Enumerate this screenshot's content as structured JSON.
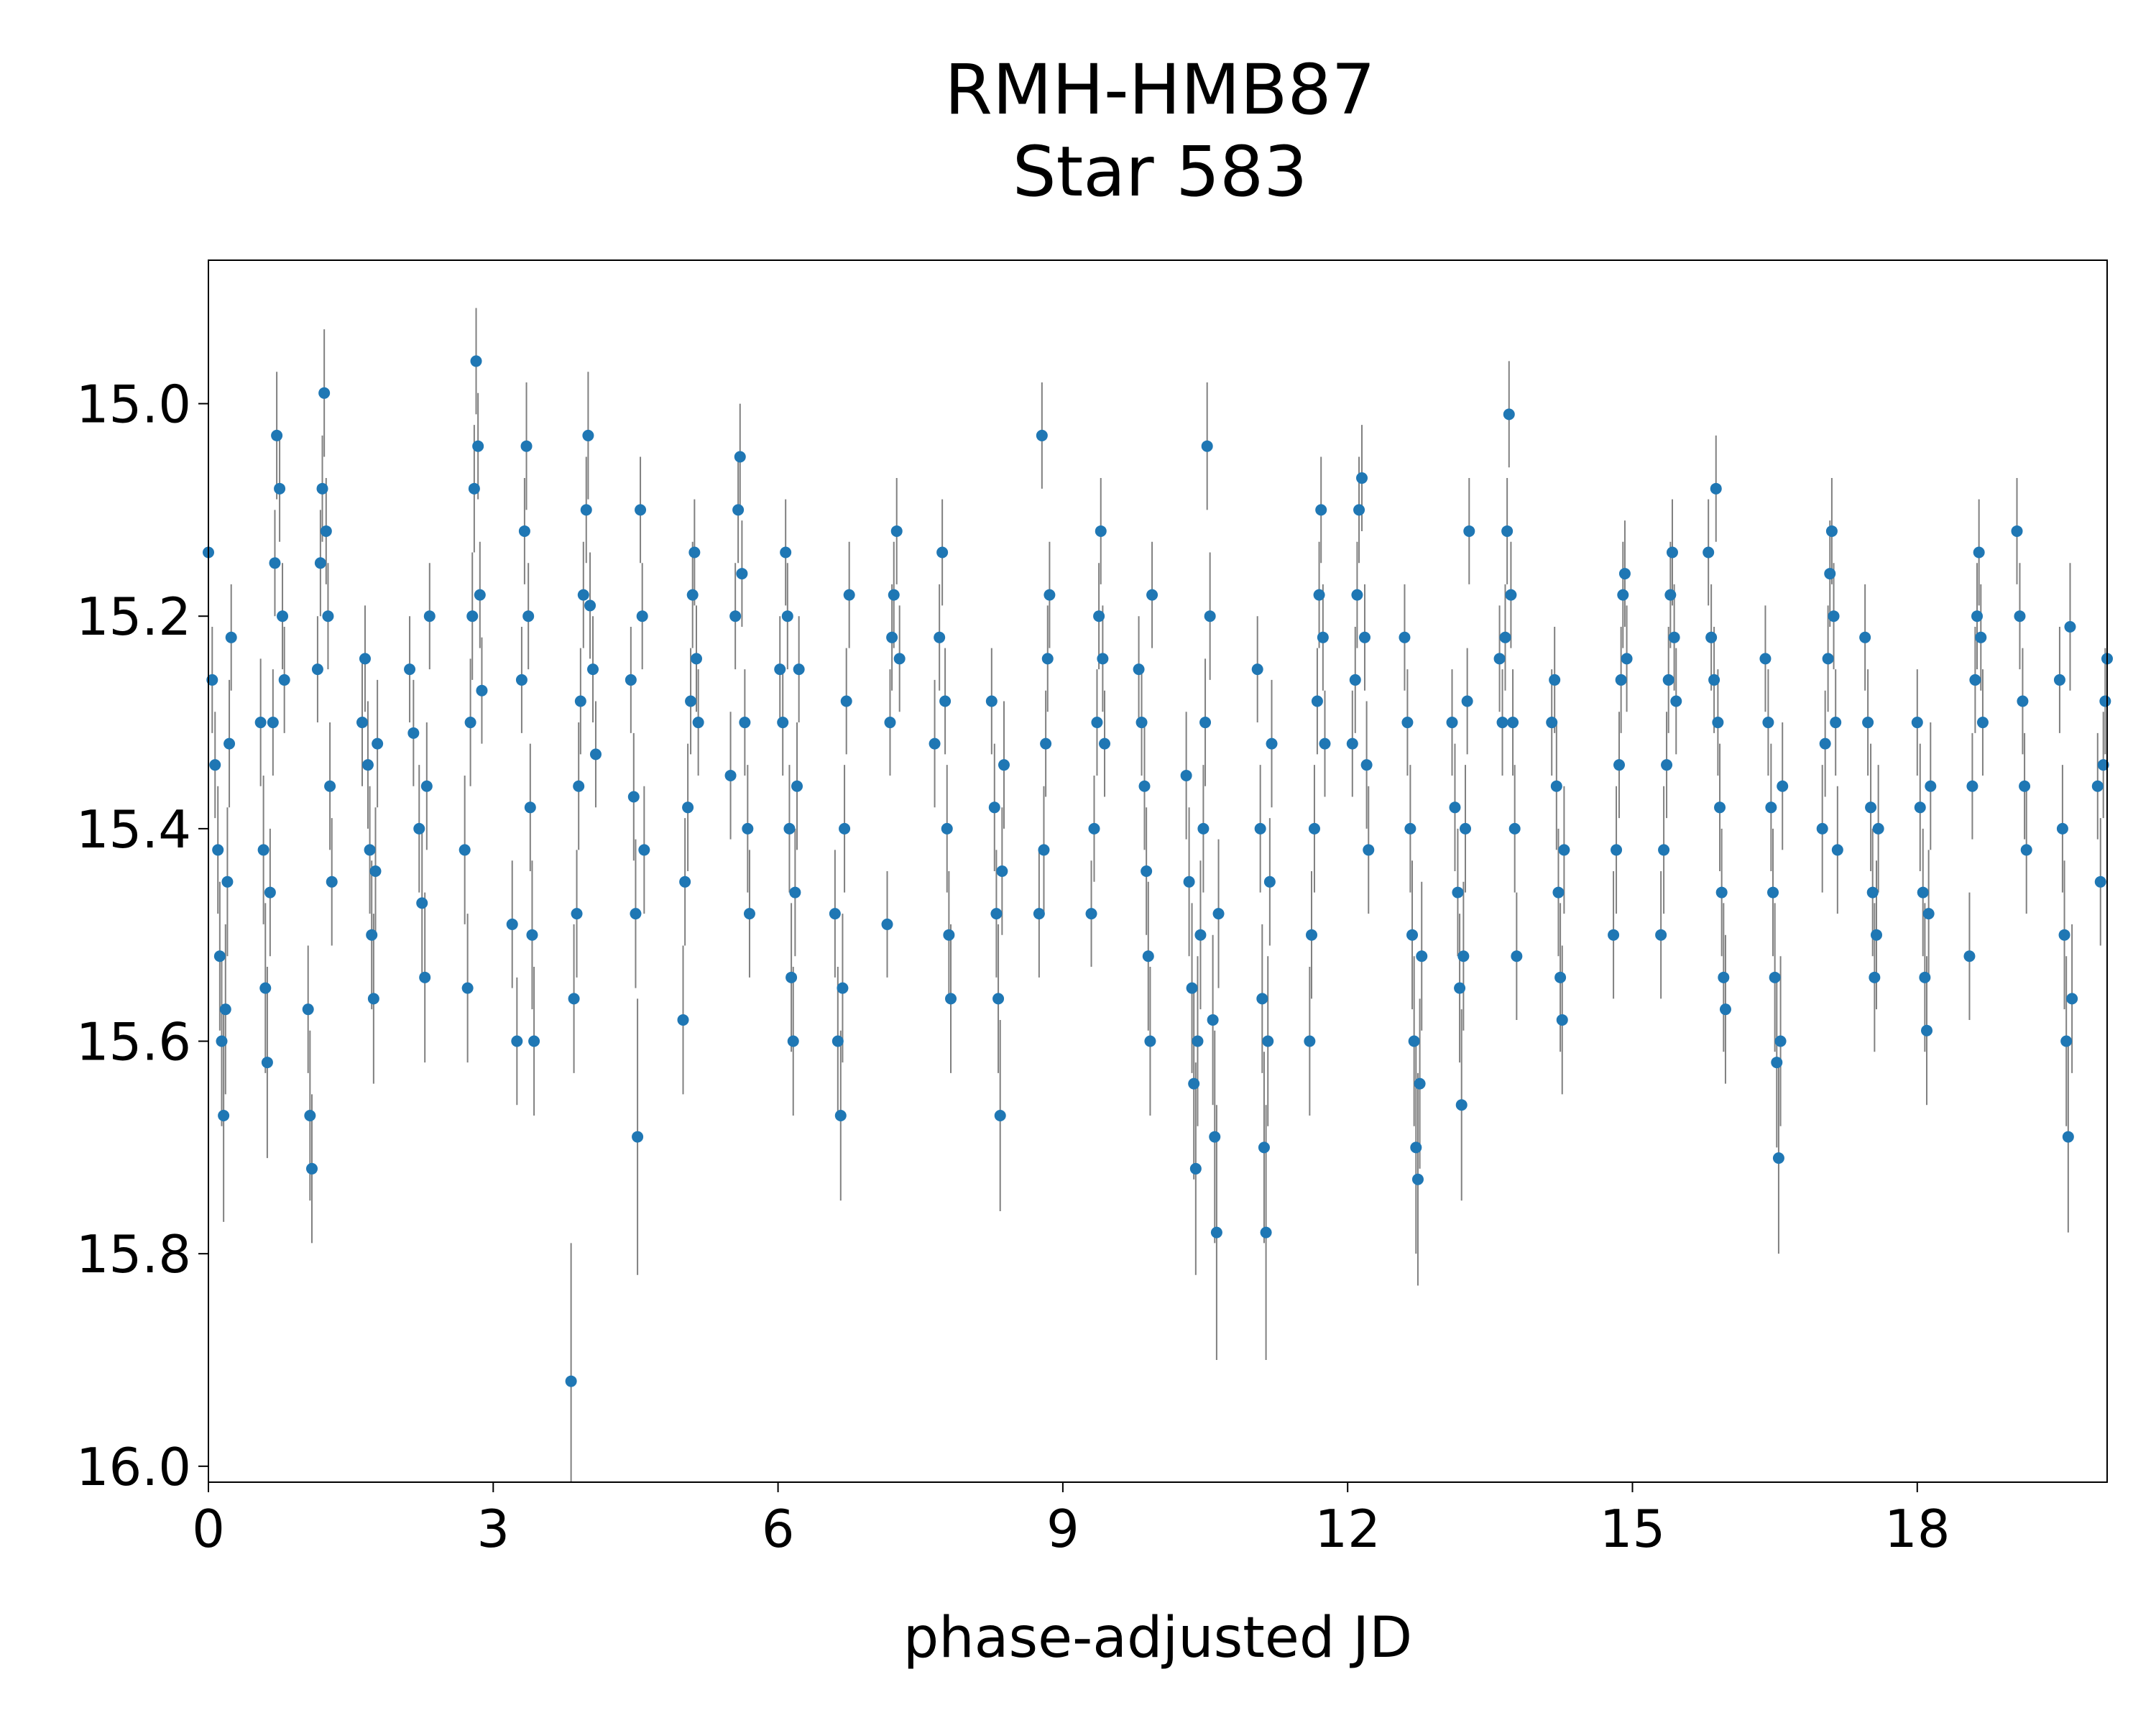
{
  "chart_data": {
    "type": "scatter",
    "title": "RMH-HMB87",
    "subtitle": "Star 583",
    "xlabel": "phase-adjusted JD",
    "ylabel": "",
    "xlim": [
      0,
      20
    ],
    "ylim": [
      16.015,
      14.865
    ],
    "y_inverted": true,
    "x_ticks": [
      "0",
      "3",
      "6",
      "9",
      "12",
      "15",
      "18"
    ],
    "y_ticks": [
      "15.0",
      "15.2",
      "15.4",
      "15.6",
      "15.8",
      "16.0"
    ],
    "grid": false,
    "marker_color": "#1f77b4",
    "errorbar_color": "#808080",
    "points": [
      [
        0.0,
        15.14,
        0.04
      ],
      [
        0.04,
        15.26,
        0.05
      ],
      [
        0.07,
        15.34,
        0.05
      ],
      [
        0.1,
        15.42,
        0.06
      ],
      [
        0.12,
        15.52,
        0.07
      ],
      [
        0.14,
        15.6,
        0.08
      ],
      [
        0.16,
        15.67,
        0.1
      ],
      [
        0.18,
        15.57,
        0.08
      ],
      [
        0.2,
        15.45,
        0.07
      ],
      [
        0.22,
        15.32,
        0.06
      ],
      [
        0.24,
        15.22,
        0.05
      ],
      [
        0.55,
        15.3,
        0.06
      ],
      [
        0.58,
        15.42,
        0.07
      ],
      [
        0.6,
        15.55,
        0.08
      ],
      [
        0.62,
        15.62,
        0.09
      ],
      [
        0.65,
        15.46,
        0.06
      ],
      [
        0.68,
        15.3,
        0.05
      ],
      [
        0.7,
        15.15,
        0.05
      ],
      [
        0.72,
        15.03,
        0.06
      ],
      [
        0.75,
        15.08,
        0.05
      ],
      [
        0.78,
        15.2,
        0.05
      ],
      [
        0.8,
        15.26,
        0.05
      ],
      [
        1.05,
        15.57,
        0.06
      ],
      [
        1.07,
        15.67,
        0.08
      ],
      [
        1.09,
        15.72,
        0.07
      ],
      [
        1.15,
        15.25,
        0.05
      ],
      [
        1.18,
        15.15,
        0.05
      ],
      [
        1.2,
        15.08,
        0.05
      ],
      [
        1.22,
        14.99,
        0.06
      ],
      [
        1.24,
        15.12,
        0.05
      ],
      [
        1.26,
        15.2,
        0.05
      ],
      [
        1.28,
        15.36,
        0.06
      ],
      [
        1.3,
        15.45,
        0.06
      ],
      [
        1.62,
        15.3,
        0.06
      ],
      [
        1.65,
        15.24,
        0.05
      ],
      [
        1.68,
        15.34,
        0.06
      ],
      [
        1.7,
        15.42,
        0.06
      ],
      [
        1.72,
        15.5,
        0.07
      ],
      [
        1.74,
        15.56,
        0.08
      ],
      [
        1.76,
        15.44,
        0.06
      ],
      [
        1.78,
        15.32,
        0.06
      ],
      [
        2.12,
        15.25,
        0.05
      ],
      [
        2.16,
        15.31,
        0.05
      ],
      [
        2.22,
        15.4,
        0.06
      ],
      [
        2.25,
        15.47,
        0.07
      ],
      [
        2.28,
        15.54,
        0.08
      ],
      [
        2.3,
        15.36,
        0.06
      ],
      [
        2.33,
        15.2,
        0.05
      ],
      [
        2.7,
        15.42,
        0.07
      ],
      [
        2.73,
        15.55,
        0.07
      ],
      [
        2.76,
        15.3,
        0.06
      ],
      [
        2.78,
        15.2,
        0.06
      ],
      [
        2.8,
        15.08,
        0.06
      ],
      [
        2.82,
        14.96,
        0.05
      ],
      [
        2.84,
        15.04,
        0.05
      ],
      [
        2.86,
        15.18,
        0.05
      ],
      [
        2.88,
        15.27,
        0.05
      ],
      [
        3.2,
        15.49,
        0.06
      ],
      [
        3.25,
        15.6,
        0.06
      ],
      [
        3.3,
        15.26,
        0.05
      ],
      [
        3.33,
        15.12,
        0.05
      ],
      [
        3.35,
        15.04,
        0.06
      ],
      [
        3.37,
        15.2,
        0.05
      ],
      [
        3.39,
        15.38,
        0.06
      ],
      [
        3.41,
        15.5,
        0.07
      ],
      [
        3.43,
        15.6,
        0.07
      ],
      [
        3.82,
        15.92,
        0.13
      ],
      [
        3.85,
        15.56,
        0.07
      ],
      [
        3.88,
        15.48,
        0.06
      ],
      [
        3.9,
        15.36,
        0.06
      ],
      [
        3.92,
        15.28,
        0.05
      ],
      [
        3.95,
        15.18,
        0.05
      ],
      [
        3.98,
        15.1,
        0.05
      ],
      [
        4.0,
        15.03,
        0.06
      ],
      [
        4.02,
        15.19,
        0.05
      ],
      [
        4.05,
        15.25,
        0.05
      ],
      [
        4.08,
        15.33,
        0.05
      ],
      [
        4.45,
        15.26,
        0.05
      ],
      [
        4.48,
        15.37,
        0.06
      ],
      [
        4.5,
        15.48,
        0.07
      ],
      [
        4.52,
        15.69,
        0.13
      ],
      [
        4.55,
        15.1,
        0.05
      ],
      [
        4.57,
        15.2,
        0.05
      ],
      [
        4.59,
        15.42,
        0.06
      ],
      [
        5.0,
        15.58,
        0.07
      ],
      [
        5.02,
        15.45,
        0.06
      ],
      [
        5.05,
        15.38,
        0.06
      ],
      [
        5.08,
        15.28,
        0.05
      ],
      [
        5.1,
        15.18,
        0.05
      ],
      [
        5.12,
        15.14,
        0.05
      ],
      [
        5.14,
        15.24,
        0.05
      ],
      [
        5.16,
        15.3,
        0.05
      ],
      [
        5.5,
        15.35,
        0.06
      ],
      [
        5.55,
        15.2,
        0.05
      ],
      [
        5.58,
        15.1,
        0.05
      ],
      [
        5.6,
        15.05,
        0.05
      ],
      [
        5.62,
        15.16,
        0.05
      ],
      [
        5.65,
        15.3,
        0.05
      ],
      [
        5.68,
        15.4,
        0.06
      ],
      [
        5.7,
        15.48,
        0.06
      ],
      [
        6.02,
        15.25,
        0.05
      ],
      [
        6.05,
        15.3,
        0.05
      ],
      [
        6.08,
        15.14,
        0.05
      ],
      [
        6.1,
        15.2,
        0.05
      ],
      [
        6.12,
        15.4,
        0.06
      ],
      [
        6.14,
        15.54,
        0.07
      ],
      [
        6.16,
        15.6,
        0.07
      ],
      [
        6.18,
        15.46,
        0.06
      ],
      [
        6.2,
        15.36,
        0.06
      ],
      [
        6.22,
        15.25,
        0.05
      ],
      [
        6.6,
        15.48,
        0.06
      ],
      [
        6.63,
        15.6,
        0.07
      ],
      [
        6.66,
        15.67,
        0.08
      ],
      [
        6.68,
        15.55,
        0.07
      ],
      [
        6.7,
        15.4,
        0.06
      ],
      [
        6.72,
        15.28,
        0.05
      ],
      [
        6.75,
        15.18,
        0.05
      ],
      [
        7.15,
        15.49,
        0.05
      ],
      [
        7.18,
        15.3,
        0.05
      ],
      [
        7.2,
        15.22,
        0.05
      ],
      [
        7.22,
        15.18,
        0.05
      ],
      [
        7.25,
        15.12,
        0.05
      ],
      [
        7.28,
        15.24,
        0.05
      ],
      [
        7.65,
        15.32,
        0.06
      ],
      [
        7.7,
        15.22,
        0.05
      ],
      [
        7.73,
        15.14,
        0.05
      ],
      [
        7.76,
        15.28,
        0.05
      ],
      [
        7.78,
        15.4,
        0.06
      ],
      [
        7.8,
        15.5,
        0.06
      ],
      [
        7.82,
        15.56,
        0.07
      ],
      [
        8.25,
        15.28,
        0.05
      ],
      [
        8.28,
        15.38,
        0.06
      ],
      [
        8.3,
        15.48,
        0.06
      ],
      [
        8.32,
        15.56,
        0.07
      ],
      [
        8.34,
        15.67,
        0.09
      ],
      [
        8.36,
        15.44,
        0.06
      ],
      [
        8.38,
        15.34,
        0.06
      ],
      [
        8.75,
        15.48,
        0.06
      ],
      [
        8.78,
        15.03,
        0.05
      ],
      [
        8.8,
        15.42,
        0.06
      ],
      [
        8.82,
        15.32,
        0.05
      ],
      [
        8.84,
        15.24,
        0.05
      ],
      [
        8.86,
        15.18,
        0.05
      ],
      [
        9.3,
        15.48,
        0.05
      ],
      [
        9.33,
        15.4,
        0.05
      ],
      [
        9.36,
        15.3,
        0.05
      ],
      [
        9.38,
        15.2,
        0.05
      ],
      [
        9.4,
        15.12,
        0.05
      ],
      [
        9.42,
        15.24,
        0.05
      ],
      [
        9.44,
        15.32,
        0.05
      ],
      [
        9.8,
        15.25,
        0.05
      ],
      [
        9.83,
        15.3,
        0.05
      ],
      [
        9.86,
        15.36,
        0.06
      ],
      [
        9.88,
        15.44,
        0.06
      ],
      [
        9.9,
        15.52,
        0.07
      ],
      [
        9.92,
        15.6,
        0.07
      ],
      [
        9.94,
        15.18,
        0.05
      ],
      [
        10.3,
        15.35,
        0.06
      ],
      [
        10.33,
        15.45,
        0.07
      ],
      [
        10.36,
        15.55,
        0.08
      ],
      [
        10.38,
        15.64,
        0.09
      ],
      [
        10.4,
        15.72,
        0.1
      ],
      [
        10.42,
        15.6,
        0.08
      ],
      [
        10.45,
        15.5,
        0.07
      ],
      [
        10.48,
        15.4,
        0.06
      ],
      [
        10.5,
        15.3,
        0.06
      ],
      [
        10.52,
        15.04,
        0.06
      ],
      [
        10.55,
        15.2,
        0.06
      ],
      [
        10.58,
        15.58,
        0.08
      ],
      [
        10.6,
        15.69,
        0.1
      ],
      [
        10.62,
        15.78,
        0.12
      ],
      [
        10.64,
        15.48,
        0.07
      ],
      [
        11.05,
        15.25,
        0.05
      ],
      [
        11.08,
        15.4,
        0.06
      ],
      [
        11.1,
        15.56,
        0.07
      ],
      [
        11.12,
        15.7,
        0.09
      ],
      [
        11.14,
        15.78,
        0.12
      ],
      [
        11.16,
        15.6,
        0.08
      ],
      [
        11.18,
        15.45,
        0.06
      ],
      [
        11.2,
        15.32,
        0.06
      ],
      [
        11.6,
        15.6,
        0.07
      ],
      [
        11.62,
        15.5,
        0.06
      ],
      [
        11.65,
        15.4,
        0.06
      ],
      [
        11.68,
        15.28,
        0.05
      ],
      [
        11.7,
        15.18,
        0.05
      ],
      [
        11.72,
        15.1,
        0.05
      ],
      [
        11.74,
        15.22,
        0.05
      ],
      [
        11.76,
        15.32,
        0.05
      ],
      [
        12.05,
        15.32,
        0.05
      ],
      [
        12.08,
        15.26,
        0.05
      ],
      [
        12.1,
        15.18,
        0.05
      ],
      [
        12.12,
        15.1,
        0.05
      ],
      [
        12.15,
        15.07,
        0.05
      ],
      [
        12.18,
        15.22,
        0.05
      ],
      [
        12.2,
        15.34,
        0.06
      ],
      [
        12.22,
        15.42,
        0.06
      ],
      [
        12.6,
        15.22,
        0.05
      ],
      [
        12.63,
        15.3,
        0.05
      ],
      [
        12.66,
        15.4,
        0.06
      ],
      [
        12.68,
        15.5,
        0.07
      ],
      [
        12.7,
        15.6,
        0.08
      ],
      [
        12.72,
        15.7,
        0.1
      ],
      [
        12.74,
        15.73,
        0.1
      ],
      [
        12.76,
        15.64,
        0.08
      ],
      [
        12.78,
        15.52,
        0.07
      ],
      [
        13.1,
        15.3,
        0.05
      ],
      [
        13.13,
        15.38,
        0.06
      ],
      [
        13.16,
        15.46,
        0.06
      ],
      [
        13.18,
        15.55,
        0.07
      ],
      [
        13.2,
        15.66,
        0.09
      ],
      [
        13.22,
        15.52,
        0.07
      ],
      [
        13.24,
        15.4,
        0.06
      ],
      [
        13.26,
        15.28,
        0.05
      ],
      [
        13.28,
        15.12,
        0.05
      ],
      [
        13.6,
        15.24,
        0.05
      ],
      [
        13.63,
        15.3,
        0.05
      ],
      [
        13.66,
        15.22,
        0.05
      ],
      [
        13.68,
        15.12,
        0.05
      ],
      [
        13.7,
        15.01,
        0.05
      ],
      [
        13.72,
        15.18,
        0.05
      ],
      [
        13.74,
        15.3,
        0.05
      ],
      [
        13.76,
        15.4,
        0.06
      ],
      [
        13.78,
        15.52,
        0.06
      ],
      [
        14.15,
        15.3,
        0.05
      ],
      [
        14.18,
        15.26,
        0.05
      ],
      [
        14.2,
        15.36,
        0.06
      ],
      [
        14.22,
        15.46,
        0.06
      ],
      [
        14.24,
        15.54,
        0.07
      ],
      [
        14.26,
        15.58,
        0.07
      ],
      [
        14.28,
        15.42,
        0.06
      ],
      [
        14.8,
        15.5,
        0.06
      ],
      [
        14.83,
        15.42,
        0.06
      ],
      [
        14.86,
        15.34,
        0.05
      ],
      [
        14.88,
        15.26,
        0.05
      ],
      [
        14.9,
        15.18,
        0.05
      ],
      [
        14.92,
        15.16,
        0.05
      ],
      [
        14.94,
        15.24,
        0.05
      ],
      [
        15.3,
        15.5,
        0.06
      ],
      [
        15.33,
        15.42,
        0.06
      ],
      [
        15.36,
        15.34,
        0.05
      ],
      [
        15.38,
        15.26,
        0.05
      ],
      [
        15.4,
        15.18,
        0.05
      ],
      [
        15.42,
        15.14,
        0.05
      ],
      [
        15.44,
        15.22,
        0.05
      ],
      [
        15.46,
        15.28,
        0.05
      ],
      [
        15.8,
        15.14,
        0.05
      ],
      [
        15.83,
        15.22,
        0.05
      ],
      [
        15.86,
        15.26,
        0.05
      ],
      [
        15.88,
        15.08,
        0.05
      ],
      [
        15.9,
        15.3,
        0.05
      ],
      [
        15.92,
        15.38,
        0.06
      ],
      [
        15.94,
        15.46,
        0.06
      ],
      [
        15.96,
        15.54,
        0.07
      ],
      [
        15.98,
        15.57,
        0.07
      ],
      [
        16.4,
        15.24,
        0.05
      ],
      [
        16.43,
        15.3,
        0.05
      ],
      [
        16.46,
        15.38,
        0.06
      ],
      [
        16.48,
        15.46,
        0.06
      ],
      [
        16.5,
        15.54,
        0.07
      ],
      [
        16.52,
        15.62,
        0.08
      ],
      [
        16.54,
        15.71,
        0.09
      ],
      [
        16.56,
        15.6,
        0.08
      ],
      [
        16.58,
        15.36,
        0.06
      ],
      [
        17.0,
        15.4,
        0.06
      ],
      [
        17.03,
        15.32,
        0.05
      ],
      [
        17.06,
        15.24,
        0.05
      ],
      [
        17.08,
        15.16,
        0.05
      ],
      [
        17.1,
        15.12,
        0.05
      ],
      [
        17.12,
        15.2,
        0.05
      ],
      [
        17.14,
        15.3,
        0.05
      ],
      [
        17.16,
        15.42,
        0.06
      ],
      [
        17.45,
        15.22,
        0.05
      ],
      [
        17.48,
        15.3,
        0.05
      ],
      [
        17.51,
        15.38,
        0.06
      ],
      [
        17.53,
        15.46,
        0.06
      ],
      [
        17.55,
        15.54,
        0.07
      ],
      [
        17.57,
        15.5,
        0.07
      ],
      [
        17.59,
        15.4,
        0.06
      ],
      [
        18.0,
        15.3,
        0.05
      ],
      [
        18.03,
        15.38,
        0.06
      ],
      [
        18.06,
        15.46,
        0.06
      ],
      [
        18.08,
        15.54,
        0.07
      ],
      [
        18.1,
        15.59,
        0.07
      ],
      [
        18.12,
        15.48,
        0.06
      ],
      [
        18.14,
        15.36,
        0.06
      ],
      [
        18.55,
        15.52,
        0.06
      ],
      [
        18.58,
        15.36,
        0.05
      ],
      [
        18.61,
        15.26,
        0.05
      ],
      [
        18.63,
        15.2,
        0.05
      ],
      [
        18.65,
        15.14,
        0.05
      ],
      [
        18.67,
        15.22,
        0.05
      ],
      [
        18.69,
        15.3,
        0.05
      ],
      [
        19.05,
        15.12,
        0.05
      ],
      [
        19.08,
        15.2,
        0.05
      ],
      [
        19.11,
        15.28,
        0.05
      ],
      [
        19.13,
        15.36,
        0.05
      ],
      [
        19.15,
        15.42,
        0.06
      ],
      [
        19.5,
        15.26,
        0.05
      ],
      [
        19.53,
        15.4,
        0.06
      ],
      [
        19.55,
        15.5,
        0.07
      ],
      [
        19.57,
        15.6,
        0.08
      ],
      [
        19.59,
        15.69,
        0.09
      ],
      [
        19.61,
        15.21,
        0.06
      ],
      [
        19.63,
        15.56,
        0.07
      ],
      [
        19.9,
        15.36,
        0.05
      ],
      [
        19.93,
        15.45,
        0.06
      ],
      [
        19.96,
        15.34,
        0.05
      ],
      [
        19.98,
        15.28,
        0.05
      ],
      [
        20.0,
        15.24,
        0.05
      ]
    ]
  }
}
